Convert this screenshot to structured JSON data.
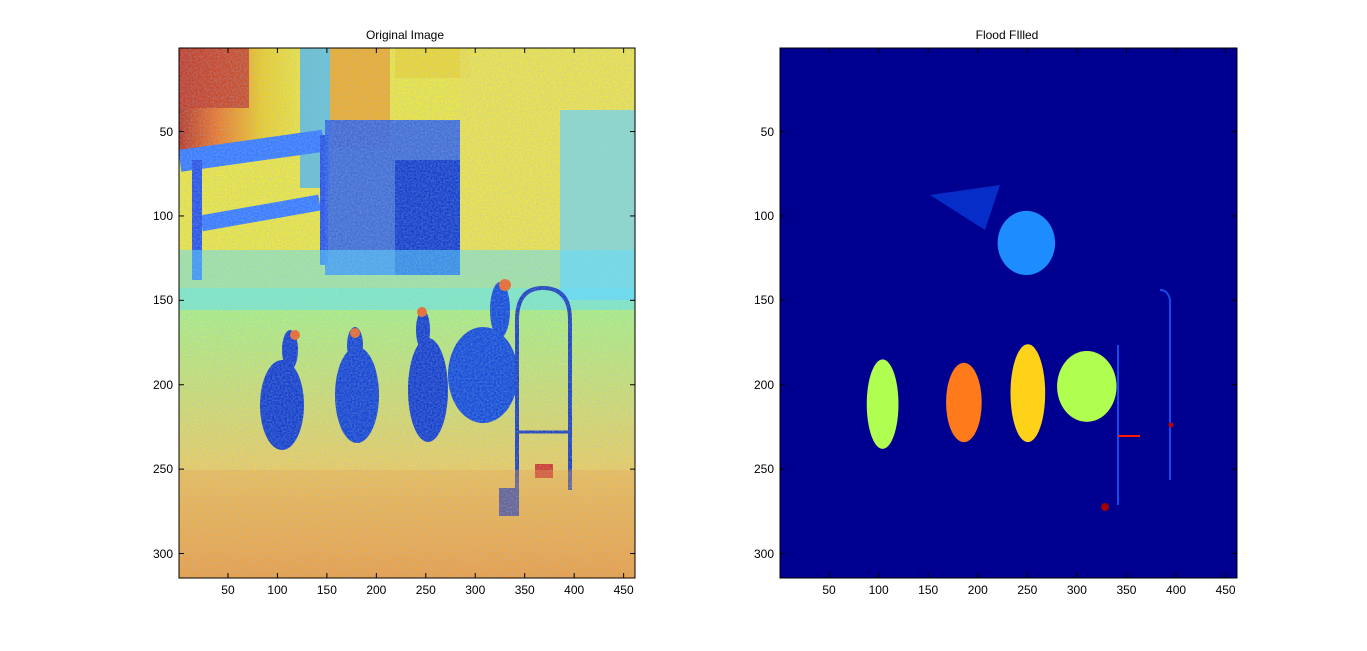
{
  "chart_data": [
    {
      "type": "heatmap",
      "title": "Original Image",
      "xlabel": "",
      "ylabel": "",
      "xlim": [
        0.5,
        461.5
      ],
      "ylim": [
        314.5,
        0.5
      ],
      "xticks": [
        50,
        100,
        150,
        200,
        250,
        300,
        350,
        400,
        450
      ],
      "yticks": [
        50,
        100,
        150,
        200,
        250,
        300
      ],
      "colormap": "jet",
      "content": "colormapped photograph of four turkeys beside a fence and a hoop stand",
      "colors": {
        "background": "#ffffff",
        "dark_red": "#c02000",
        "orange": "#ff8800",
        "yellow": "#ffff00",
        "cyan": "#00e0ff",
        "light_blue": "#2aa0ff",
        "blue": "#0030d0",
        "navy": "#000090"
      }
    },
    {
      "type": "heatmap",
      "title": "Flood FIlled",
      "xlabel": "",
      "ylabel": "",
      "xlim": [
        0.5,
        461.5
      ],
      "ylim": [
        314.5,
        0.5
      ],
      "xticks": [
        50,
        100,
        150,
        200,
        250,
        300,
        350,
        400,
        450
      ],
      "yticks": [
        50,
        100,
        150,
        200,
        250,
        300
      ],
      "colormap": "jet",
      "content": "labeled flood-fill regions on dark blue background",
      "regions": [
        {
          "color": "#b0ff50",
          "x": [
            88,
            120
          ],
          "y": [
            185,
            238
          ]
        },
        {
          "color": "#ff7a1a",
          "x": [
            168,
            204
          ],
          "y": [
            187,
            234
          ]
        },
        {
          "color": "#ffd21a",
          "x": [
            233,
            268
          ],
          "y": [
            176,
            234
          ]
        },
        {
          "color": "#b0ff50",
          "x": [
            280,
            340
          ],
          "y": [
            180,
            222
          ]
        },
        {
          "color": "#1d8cff",
          "x": [
            220,
            278
          ],
          "y": [
            97,
            135
          ]
        }
      ],
      "colors": {
        "background": "#000090"
      }
    }
  ]
}
